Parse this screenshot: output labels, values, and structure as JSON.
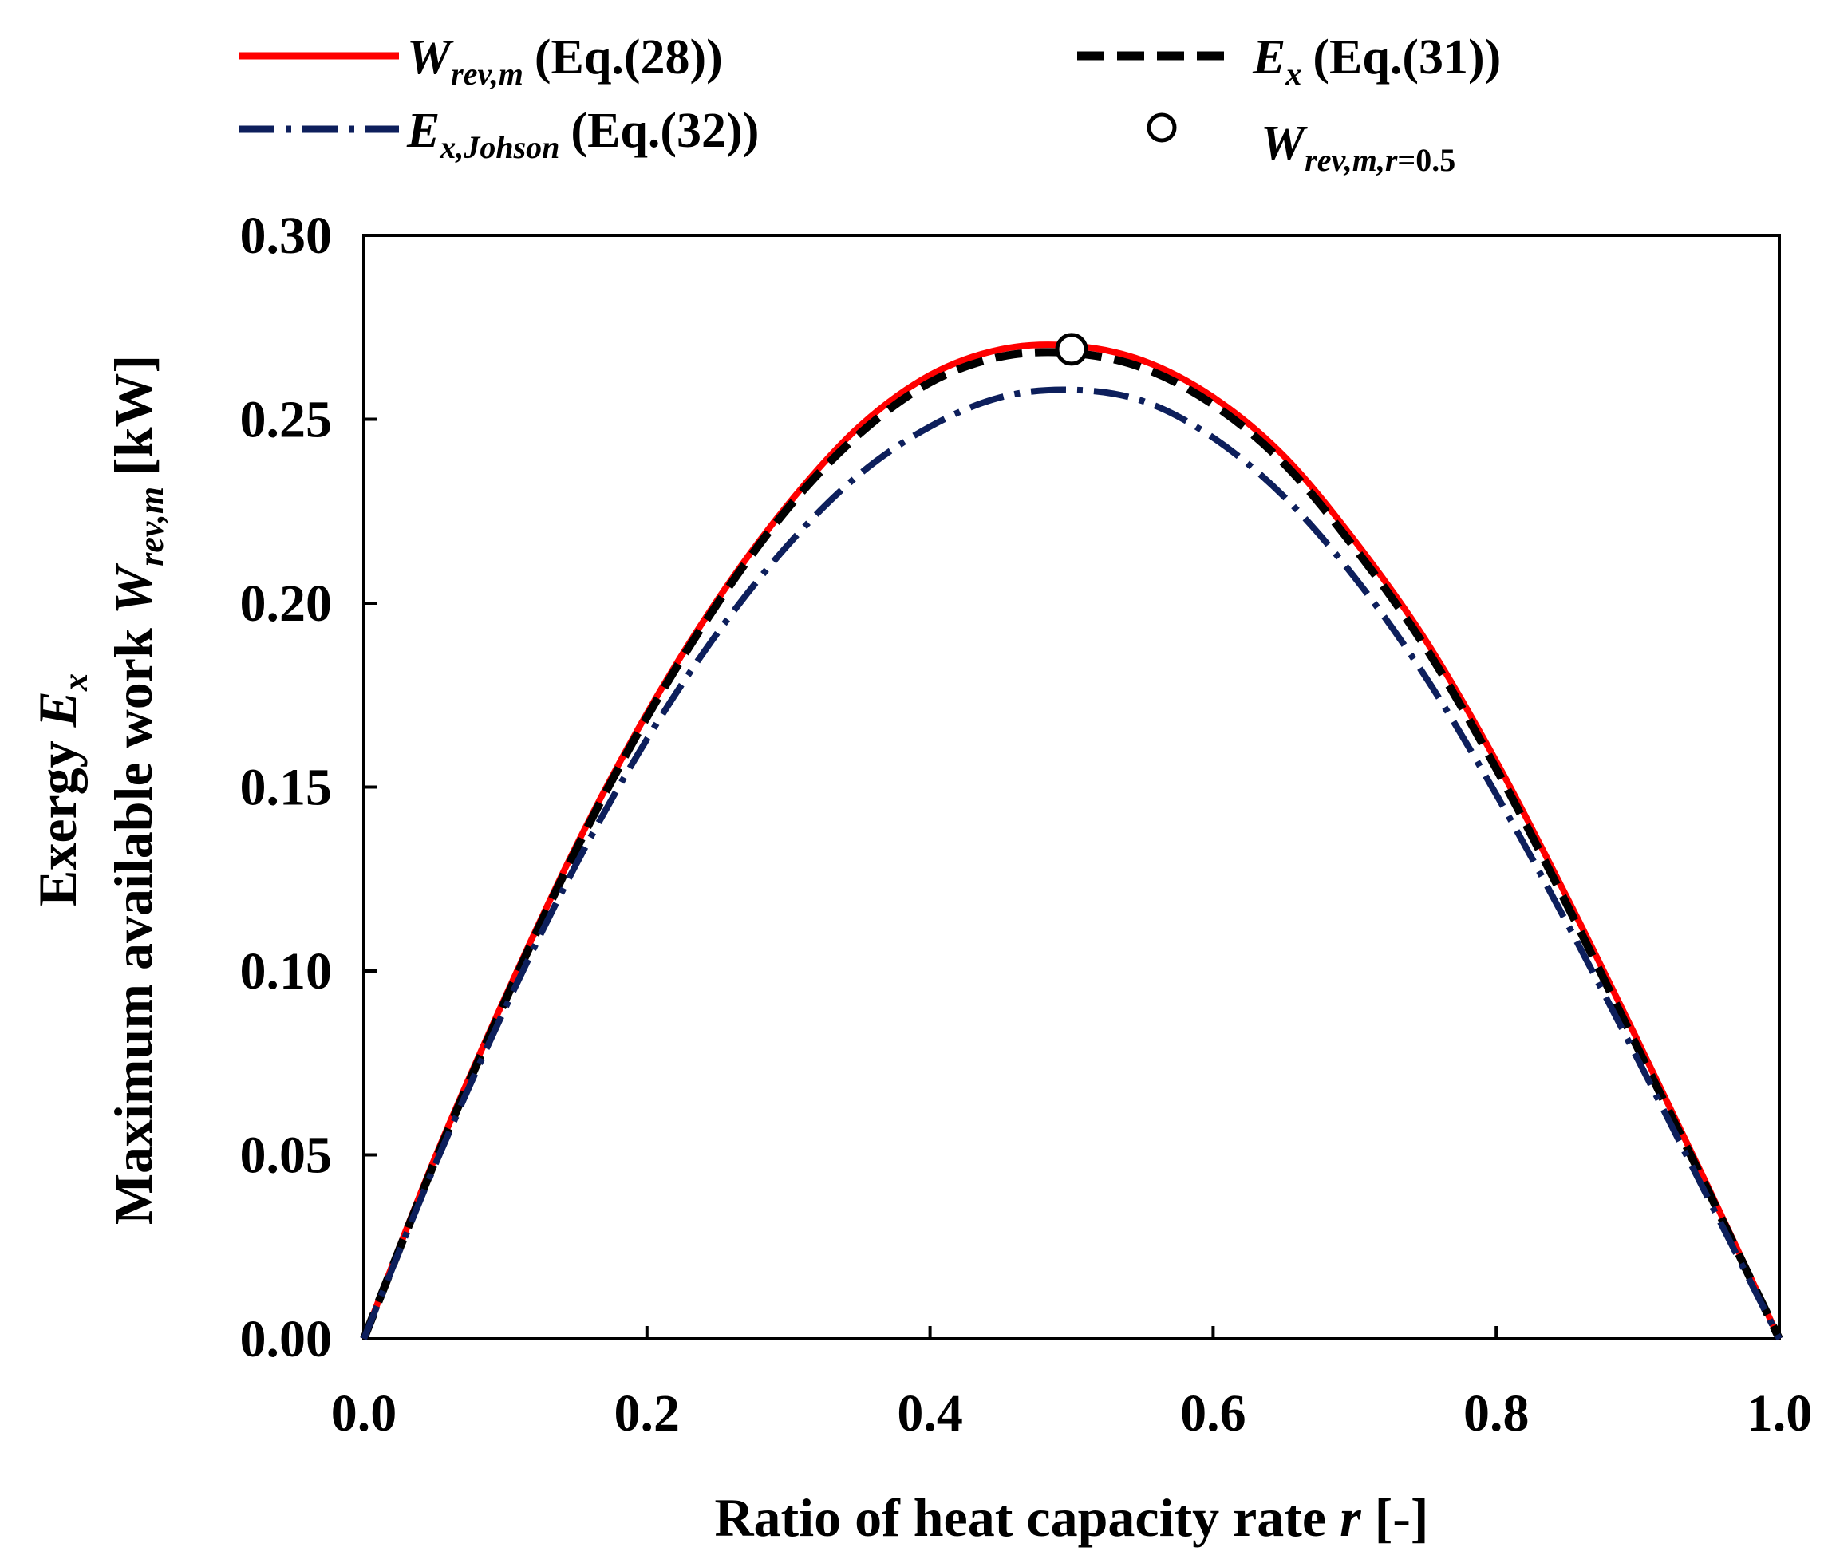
{
  "chart_data": {
    "type": "line",
    "xlabel": "Ratio of heat capacity rate",
    "xlabel_var": "r",
    "xlabel_unit": "[-]",
    "ylabel_line1": {
      "prefix": "Exergy",
      "var": "E",
      "sub": "x"
    },
    "ylabel_line2": {
      "prefix": "Maximum available work",
      "var": "W",
      "sub": "rev,m",
      "unit": "[kW]"
    },
    "xlim": [
      0,
      1.0
    ],
    "ylim": [
      0,
      0.3
    ],
    "x_ticks": [
      "0.0",
      "0.2",
      "0.4",
      "0.6",
      "0.8",
      "1.0"
    ],
    "y_ticks": [
      "0.00",
      "0.05",
      "0.10",
      "0.15",
      "0.20",
      "0.25",
      "0.30"
    ],
    "legend_position": "top",
    "x": [
      0.0,
      0.05,
      0.1,
      0.15,
      0.2,
      0.25,
      0.3,
      0.35,
      0.4,
      0.45,
      0.5,
      0.55,
      0.6,
      0.65,
      0.7,
      0.75,
      0.8,
      0.85,
      0.9,
      0.95,
      1.0
    ],
    "series": [
      {
        "name": "W_rev,m (Eq.(28))",
        "legend_var": "W",
        "legend_sub": "rev,m",
        "legend_eq": "(Eq.(28))",
        "color": "#ff0000",
        "style": "solid",
        "values": [
          0.0,
          0.049,
          0.093,
          0.134,
          0.17,
          0.201,
          0.227,
          0.248,
          0.262,
          0.269,
          0.27,
          0.266,
          0.256,
          0.24,
          0.217,
          0.19,
          0.157,
          0.12,
          0.081,
          0.041,
          0.0
        ]
      },
      {
        "name": "E_x (Eq.(31))",
        "legend_var": "E",
        "legend_sub": "x",
        "legend_eq": "(Eq.(31))",
        "color": "#000000",
        "style": "dashed",
        "values": [
          0.0,
          0.048,
          0.092,
          0.133,
          0.169,
          0.2,
          0.226,
          0.246,
          0.26,
          0.267,
          0.268,
          0.264,
          0.254,
          0.238,
          0.215,
          0.188,
          0.155,
          0.118,
          0.079,
          0.04,
          0.0
        ]
      },
      {
        "name": "E_x,Johson (Eq.(32))",
        "legend_var": "E",
        "legend_sub": "x,Johson",
        "legend_eq": "(Eq.(32))",
        "color": "#0d1f5c",
        "style": "dashdot",
        "values": [
          0.0,
          0.047,
          0.09,
          0.129,
          0.163,
          0.192,
          0.216,
          0.235,
          0.248,
          0.256,
          0.258,
          0.255,
          0.245,
          0.229,
          0.207,
          0.18,
          0.148,
          0.113,
          0.076,
          0.038,
          0.0
        ]
      }
    ],
    "marker": {
      "name": "W_rev,m,r=0.5",
      "legend_var": "W",
      "legend_sub": "rev,m,r",
      "legend_sub_tail": "=0.5",
      "x": 0.5,
      "y": 0.269,
      "marker": "open-circle"
    }
  }
}
